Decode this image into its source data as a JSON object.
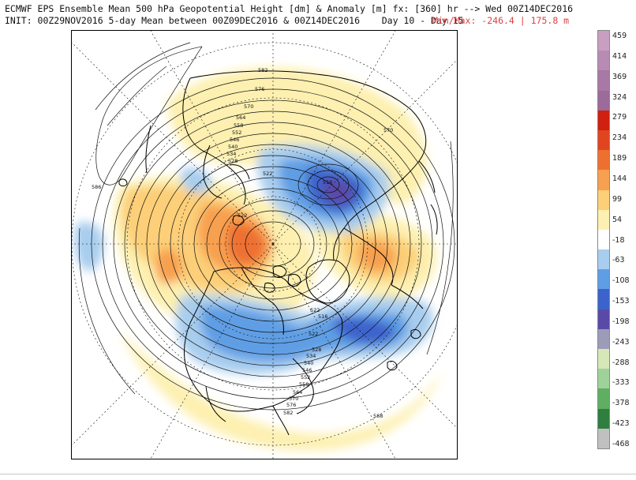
{
  "header": {
    "line1": "ECMWF EPS Ensemble Mean 500 hPa Geopotential Height [dm] & Anomaly [m] fx: [360] hr --> Wed 00Z14DEC2016",
    "line2": "INIT: 00Z29NOV2016 5-day Mean between 00Z09DEC2016 & 00Z14DEC2016    Day 10 - Day 15",
    "minmax": "Min/Max: -246.4 | 175.8 m"
  },
  "colorbar": {
    "labels": [
      "459",
      "414",
      "369",
      "324",
      "279",
      "234",
      "189",
      "144",
      "99",
      "54",
      "-18",
      "-63",
      "-108",
      "-153",
      "-198",
      "-243",
      "-288",
      "-333",
      "-378",
      "-423",
      "-468"
    ],
    "colors": [
      "#c89fc0",
      "#b88bb4",
      "#a878a6",
      "#9c6b9a",
      "#d02010",
      "#e04520",
      "#ee7030",
      "#f7a050",
      "#fccf78",
      "#fdf0b0",
      "#ffffff",
      "#a8cdee",
      "#5e9ee4",
      "#3c63cc",
      "#5a4aa8",
      "#9c9cb8",
      "#d6e8b8",
      "#9fd29a",
      "#5fae62",
      "#2f7f40",
      "#c0c0c0"
    ]
  },
  "map": {
    "contour_labels": [
      "582",
      "576",
      "570",
      "564",
      "558",
      "552",
      "546",
      "540",
      "534",
      "528",
      "522",
      "516",
      "522",
      "570",
      "586",
      "522",
      "516",
      "522",
      "528",
      "534",
      "540",
      "546",
      "552",
      "558",
      "564",
      "570",
      "576",
      "582",
      "588"
    ]
  }
}
